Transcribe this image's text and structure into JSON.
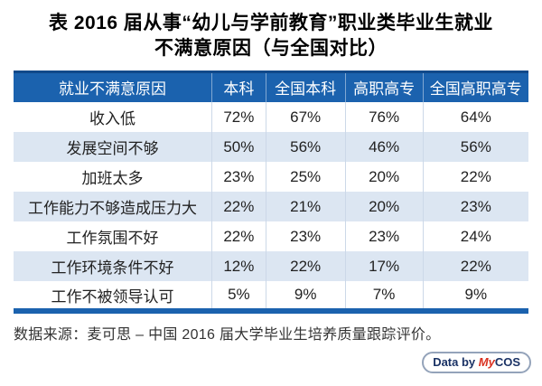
{
  "title": {
    "line1": "表 2016 届从事“幼儿与学前教育”职业类毕业生就业",
    "line2": "不满意原因（与全国对比）"
  },
  "chart_data": {
    "type": "table",
    "title": "表 2016 届从事“幼儿与学前教育”职业类毕业生就业不满意原因（与全国对比）",
    "columns": [
      "就业不满意原因",
      "本科",
      "全国本科",
      "高职高专",
      "全国高职高专"
    ],
    "rows": [
      [
        "收入低",
        "72%",
        "67%",
        "76%",
        "64%"
      ],
      [
        "发展空间不够",
        "50%",
        "56%",
        "46%",
        "56%"
      ],
      [
        "加班太多",
        "23%",
        "25%",
        "20%",
        "22%"
      ],
      [
        "工作能力不够造成压力大",
        "22%",
        "21%",
        "20%",
        "23%"
      ],
      [
        "工作氛围不好",
        "22%",
        "23%",
        "23%",
        "24%"
      ],
      [
        "工作环境条件不好",
        "12%",
        "22%",
        "17%",
        "22%"
      ],
      [
        "工作不被领导认可",
        "5%",
        "9%",
        "7%",
        "9%"
      ]
    ],
    "source": "数据来源：麦可思 – 中国 2016 届大学毕业生培养质量跟踪评价。"
  },
  "footer": {
    "source": "数据来源：麦可思 – 中国 2016 届大学毕业生培养质量跟踪评价。"
  },
  "logo": {
    "prefix": "Data by ",
    "brand_my": "My",
    "brand_cos": "COS"
  },
  "colors": {
    "header_blue": "#1b62ae",
    "header_top_border": "#11498a",
    "row_alt_blue": "#dce6f2",
    "cell_divider": "#ccd8e8",
    "bottom_bar_blue": "#1b62ae",
    "logo_red": "#d92f1e",
    "logo_navy": "#1a3265",
    "logo_border": "#94a3ba",
    "text_black": "#000000",
    "body_text": "#222222"
  }
}
